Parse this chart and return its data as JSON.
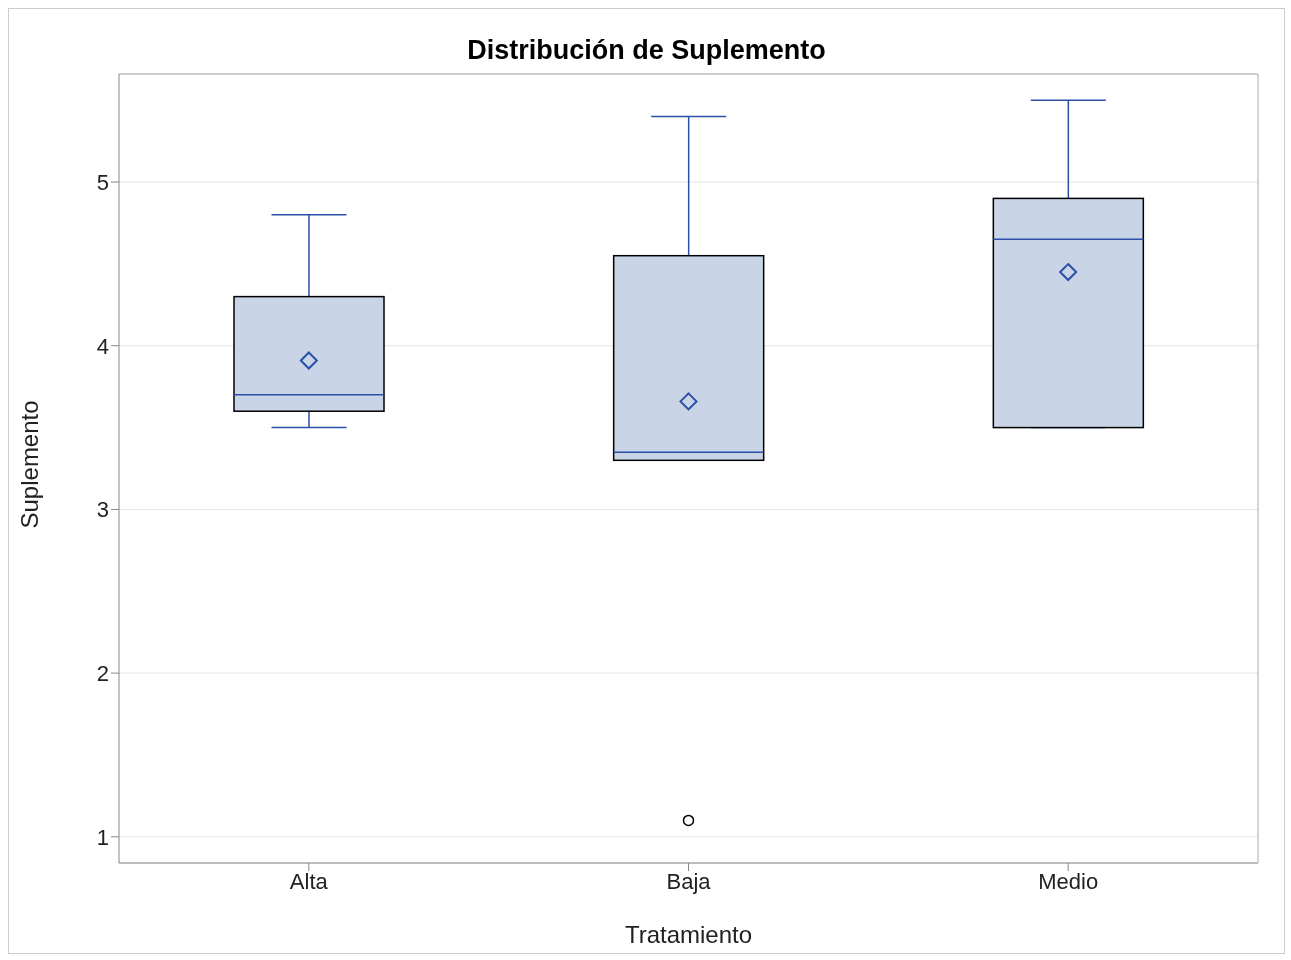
{
  "chart_data": {
    "type": "box",
    "title": "Distribución de Suplemento",
    "xlabel": "Tratamiento",
    "ylabel": "Suplemento",
    "categories": [
      "Alta",
      "Baja",
      "Medio"
    ],
    "boxes": [
      {
        "low": 3.5,
        "q1": 3.6,
        "median": 3.7,
        "q3": 4.3,
        "high": 4.8,
        "mean": 3.91
      },
      {
        "low": 3.3,
        "q1": 3.3,
        "median": 3.35,
        "q3": 4.55,
        "high": 5.4,
        "mean": 3.66,
        "outliers": [
          1.1
        ]
      },
      {
        "low": 3.5,
        "q1": 3.5,
        "median": 4.65,
        "q3": 4.9,
        "high": 5.5,
        "mean": 4.45
      }
    ],
    "color": "#c9d5e6",
    "ylim": [
      0.84,
      5.66
    ],
    "yticks": [
      1,
      2,
      3,
      4,
      5
    ],
    "grid": "y"
  }
}
